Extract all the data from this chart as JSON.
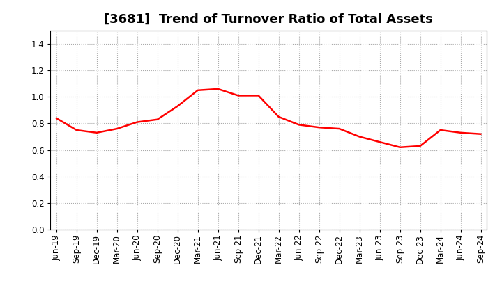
{
  "title": "[3681]  Trend of Turnover Ratio of Total Assets",
  "x_labels": [
    "Jun-19",
    "Sep-19",
    "Dec-19",
    "Mar-20",
    "Jun-20",
    "Sep-20",
    "Dec-20",
    "Mar-21",
    "Jun-21",
    "Sep-21",
    "Dec-21",
    "Mar-22",
    "Jun-22",
    "Sep-22",
    "Dec-22",
    "Mar-23",
    "Jun-23",
    "Sep-23",
    "Dec-23",
    "Mar-24",
    "Jun-24",
    "Sep-24"
  ],
  "y_values": [
    0.84,
    0.75,
    0.73,
    0.76,
    0.81,
    0.83,
    0.93,
    1.05,
    1.06,
    1.01,
    1.01,
    0.85,
    0.79,
    0.77,
    0.76,
    0.7,
    0.66,
    0.62,
    0.63,
    0.75,
    0.73,
    0.72
  ],
  "line_color": "#FF0000",
  "line_width": 1.8,
  "ylim": [
    0.0,
    1.5
  ],
  "yticks": [
    0.0,
    0.2,
    0.4,
    0.6,
    0.8,
    1.0,
    1.2,
    1.4
  ],
  "grid_color": "#aaaaaa",
  "grid_style": "dotted",
  "background_color": "#ffffff",
  "title_fontsize": 13,
  "tick_fontsize": 8.5
}
